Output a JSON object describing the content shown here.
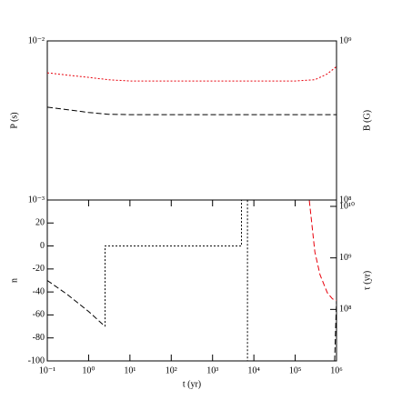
{
  "chart_data": [
    {
      "type": "line",
      "ylabel": "P (s)",
      "y2label": "B (G)",
      "y2label_color": "#e8000b",
      "xlog": true,
      "ylog": true,
      "y2log": true,
      "xlim": [
        0.1,
        1000000
      ],
      "ylim": [
        0.001,
        0.01
      ],
      "yticks": [
        {
          "value": 0.01,
          "label": "10⁻²"
        },
        {
          "value": 0.001,
          "label": "10⁻³"
        }
      ],
      "y2lim": [
        100000000,
        1000000000
      ],
      "y2ticks": [
        {
          "value": 1000000000,
          "label": "10⁹"
        },
        {
          "value": 100000000,
          "label": "10⁸"
        }
      ],
      "series": [
        {
          "name": "P",
          "color": "#000000",
          "style": "dashed",
          "x": [
            0.1,
            0.3,
            1,
            3,
            10,
            100,
            1000,
            10000,
            100000,
            1000000
          ],
          "values": [
            0.00383,
            0.0037,
            0.00355,
            0.00346,
            0.00344,
            0.00344,
            0.00344,
            0.00344,
            0.00344,
            0.00344
          ]
        },
        {
          "name": "B",
          "color": "#e8000b",
          "style": "dotted",
          "axis": "y2",
          "x": [
            0.1,
            0.3,
            1,
            3,
            10,
            100,
            1000,
            10000,
            100000,
            300000,
            600000,
            1000000
          ],
          "values": [
            630000000,
            610000000,
            590000000,
            570000000,
            560000000,
            560000000,
            560000000,
            560000000,
            560000000,
            570000000,
            620000000,
            690000000
          ]
        }
      ]
    },
    {
      "type": "line",
      "xlabel": "t (yr)",
      "ylabel": "n",
      "y2label": "τ (yr)",
      "y2label_color": "#e8000b",
      "xlog": true,
      "ylog": false,
      "y2log": true,
      "xlim": [
        0.1,
        1000000
      ],
      "xticks": [
        {
          "value": 0.1,
          "label": "10⁻¹"
        },
        {
          "value": 1,
          "label": "10⁰"
        },
        {
          "value": 10,
          "label": "10¹"
        },
        {
          "value": 100,
          "label": "10²"
        },
        {
          "value": 1000,
          "label": "10³"
        },
        {
          "value": 10000,
          "label": "10⁴"
        },
        {
          "value": 100000,
          "label": "10⁵"
        },
        {
          "value": 1000000,
          "label": "10⁶"
        }
      ],
      "ylim": [
        -100,
        40
      ],
      "yticks": [
        20,
        0,
        -20,
        -40,
        -60,
        -80,
        -100
      ],
      "y2lim": [
        10000000,
        13300000000
      ],
      "y2ticks": [
        {
          "value": 10000000000,
          "label": "10¹⁰"
        },
        {
          "value": 1000000000,
          "label": "10⁹"
        },
        {
          "value": 100000000,
          "label": "10⁸"
        }
      ],
      "series": [
        {
          "name": "n",
          "color": "#000000",
          "style": "dashed",
          "x": [
            0.1,
            0.3,
            1,
            2.5,
            null,
            900000,
            1000000
          ],
          "values": [
            -30,
            -42,
            -57,
            -70,
            null,
            -100,
            -47
          ]
        },
        {
          "name": "n",
          "color": "#000000",
          "style": "dotted",
          "x": [
            2.5,
            2.5,
            5000,
            5000,
            7000,
            7000
          ],
          "values": [
            -70,
            0,
            0,
            40,
            40,
            -100
          ]
        },
        {
          "name": "τ",
          "color": "#e8000b",
          "style": "dashed",
          "axis": "y2",
          "x": [
            220000,
            300000,
            400000,
            600000,
            800000,
            1000000
          ],
          "values": [
            13000000000,
            1300000000,
            470000000,
            210000000,
            160000000,
            150000000
          ]
        }
      ]
    }
  ]
}
